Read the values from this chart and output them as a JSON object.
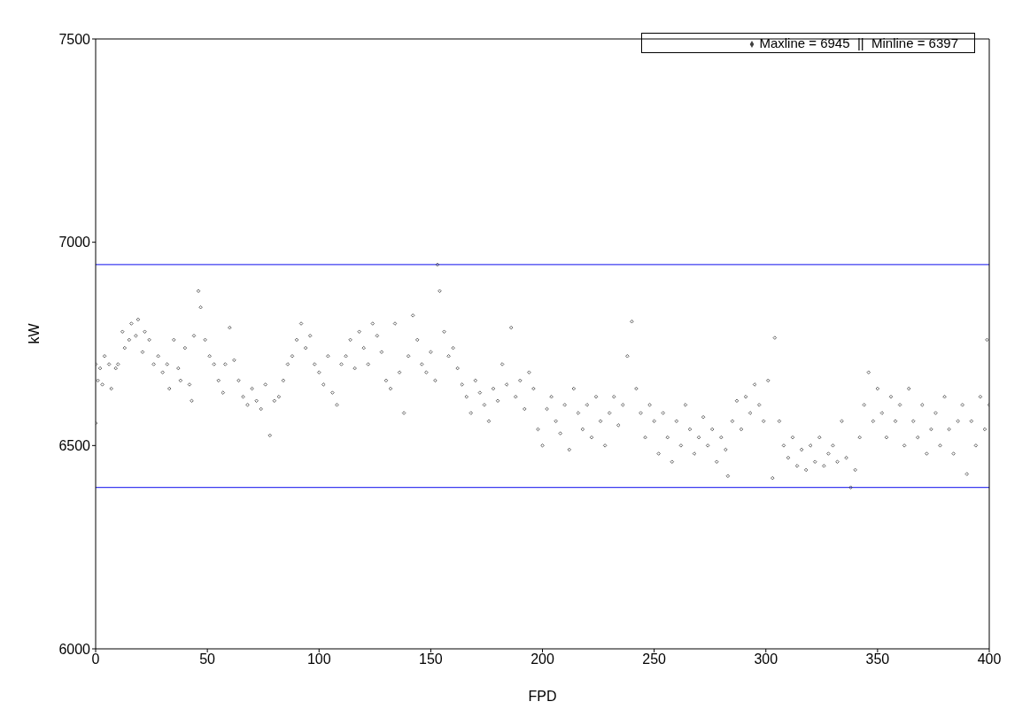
{
  "chart_data": {
    "type": "scatter",
    "xlabel": "FPD",
    "ylabel": "kW",
    "xlim": [
      0,
      400
    ],
    "xticks": [
      0,
      50,
      100,
      150,
      200,
      250,
      300,
      350,
      400
    ],
    "ylim": [
      6000,
      7500
    ],
    "yticks": [
      6000,
      6500,
      7000,
      7500
    ],
    "grid": false,
    "legend": "top right",
    "marker": "diamond",
    "series": [
      {
        "name": "Maxline = 6945  ||  Minline = 6397",
        "color": "#404040",
        "x": [
          0,
          0,
          1,
          2,
          3,
          4,
          6,
          7,
          9,
          10,
          12,
          13,
          15,
          16,
          18,
          19,
          21,
          22,
          24,
          26,
          28,
          30,
          32,
          33,
          35,
          37,
          38,
          40,
          42,
          43,
          44,
          46,
          47,
          49,
          51,
          53,
          55,
          57,
          58,
          60,
          62,
          64,
          66,
          68,
          70,
          72,
          74,
          76,
          78,
          80,
          82,
          84,
          86,
          88,
          90,
          92,
          94,
          96,
          98,
          100,
          102,
          104,
          106,
          108,
          110,
          112,
          114,
          116,
          118,
          120,
          122,
          124,
          126,
          128,
          130,
          132,
          134,
          136,
          138,
          140,
          142,
          144,
          146,
          148,
          150,
          152,
          153,
          154,
          156,
          158,
          160,
          162,
          164,
          166,
          168,
          170,
          172,
          174,
          176,
          178,
          180,
          182,
          184,
          186,
          188,
          190,
          192,
          194,
          196,
          198,
          200,
          202,
          204,
          206,
          208,
          210,
          212,
          214,
          216,
          218,
          220,
          222,
          224,
          226,
          228,
          230,
          232,
          234,
          236,
          238,
          240,
          242,
          244,
          246,
          248,
          250,
          252,
          254,
          256,
          258,
          260,
          262,
          264,
          266,
          268,
          270,
          272,
          274,
          276,
          278,
          280,
          282,
          283,
          285,
          287,
          289,
          291,
          293,
          295,
          297,
          299,
          301,
          303,
          304,
          306,
          308,
          310,
          312,
          314,
          316,
          318,
          320,
          322,
          324,
          326,
          328,
          330,
          332,
          334,
          336,
          338,
          340,
          342,
          344,
          346,
          348,
          350,
          352,
          354,
          356,
          358,
          360,
          362,
          364,
          366,
          368,
          370,
          372,
          374,
          376,
          378,
          380,
          382,
          384,
          386,
          388,
          390,
          392,
          394,
          396,
          398,
          399,
          400
        ],
        "values": [
          6700,
          6555,
          6660,
          6690,
          6650,
          6720,
          6700,
          6640,
          6690,
          6700,
          6780,
          6740,
          6760,
          6800,
          6770,
          6810,
          6730,
          6780,
          6760,
          6700,
          6720,
          6680,
          6700,
          6640,
          6760,
          6690,
          6660,
          6740,
          6650,
          6610,
          6770,
          6880,
          6840,
          6760,
          6720,
          6700,
          6660,
          6630,
          6700,
          6790,
          6710,
          6660,
          6620,
          6600,
          6640,
          6610,
          6590,
          6650,
          6525,
          6610,
          6620,
          6660,
          6700,
          6720,
          6760,
          6800,
          6740,
          6770,
          6700,
          6680,
          6650,
          6720,
          6630,
          6600,
          6700,
          6720,
          6760,
          6690,
          6780,
          6740,
          6700,
          6800,
          6770,
          6730,
          6660,
          6640,
          6800,
          6680,
          6580,
          6720,
          6820,
          6760,
          6700,
          6680,
          6730,
          6660,
          6945,
          6880,
          6780,
          6720,
          6740,
          6690,
          6650,
          6620,
          6580,
          6660,
          6630,
          6600,
          6560,
          6640,
          6610,
          6700,
          6650,
          6790,
          6620,
          6660,
          6590,
          6680,
          6640,
          6540,
          6500,
          6590,
          6620,
          6560,
          6530,
          6600,
          6490,
          6640,
          6580,
          6540,
          6600,
          6520,
          6620,
          6560,
          6500,
          6580,
          6620,
          6550,
          6600,
          6720,
          6805,
          6640,
          6580,
          6520,
          6600,
          6560,
          6480,
          6580,
          6520,
          6460,
          6560,
          6500,
          6600,
          6540,
          6480,
          6520,
          6570,
          6500,
          6540,
          6460,
          6520,
          6490,
          6425,
          6560,
          6610,
          6540,
          6620,
          6580,
          6650,
          6600,
          6560,
          6660,
          6420,
          6765,
          6560,
          6500,
          6470,
          6520,
          6450,
          6490,
          6440,
          6500,
          6460,
          6520,
          6450,
          6480,
          6500,
          6460,
          6560,
          6470,
          6397,
          6440,
          6520,
          6600,
          6680,
          6560,
          6640,
          6580,
          6520,
          6620,
          6560,
          6600,
          6500,
          6640,
          6560,
          6520,
          6600,
          6480,
          6540,
          6580,
          6500,
          6620,
          6540,
          6480,
          6560,
          6600,
          6430,
          6560,
          6500,
          6620,
          6540,
          6760,
          6600
        ]
      }
    ],
    "ref_lines": [
      {
        "axis": "y",
        "value": 6945,
        "color": "#3c3cf0"
      },
      {
        "axis": "y",
        "value": 6397,
        "color": "#3c3cf0"
      }
    ]
  }
}
